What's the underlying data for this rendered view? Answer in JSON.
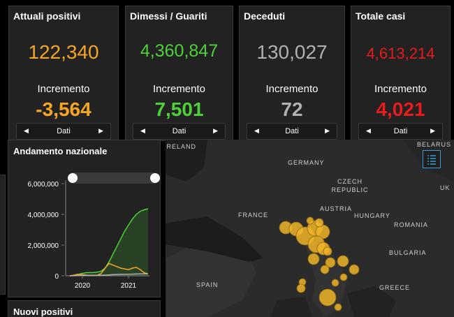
{
  "cards": [
    {
      "title": "Attuali positivi",
      "value": "122,340",
      "inc_label": "Incremento",
      "inc_value": "-3,564",
      "pager_label": "Dati",
      "value_color": "#f5a623",
      "inc_color": "#f5a623"
    },
    {
      "title": "Dimessi / Guariti",
      "value": "4,360,847",
      "inc_label": "Incremento",
      "inc_value": "7,501",
      "pager_label": "Dati",
      "value_color": "#4cd137",
      "inc_color": "#4cd137"
    },
    {
      "title": "Deceduti",
      "value": "130,027",
      "inc_label": "Incremento",
      "inc_value": "72",
      "pager_label": "Dati",
      "value_color": "#b0b0b0",
      "inc_color": "#b0b0b0"
    },
    {
      "title": "Totale casi",
      "value": "4,613,214",
      "inc_label": "Incremento",
      "inc_value": "4,021",
      "pager_label": "Dati",
      "value_color": "#e81b1b",
      "inc_color": "#e81b1b"
    }
  ],
  "chart_panel": {
    "title": "Andamento nazionale"
  },
  "bottom_panel": {
    "title": "Nuovi positivi"
  },
  "chart_data": {
    "type": "line",
    "x_ticks": [
      "2020",
      "2021"
    ],
    "y_ticks": [
      "6,000,000",
      "4,000,000",
      "2,000,000",
      "0"
    ],
    "ylim": [
      0,
      6000000
    ],
    "x": [
      0,
      1,
      2,
      3,
      4,
      5,
      6,
      7,
      8,
      9,
      10,
      11,
      12,
      13,
      14,
      15,
      16,
      17,
      18,
      19,
      20
    ],
    "series": [
      {
        "color": "#4cd137",
        "values": [
          0,
          20000,
          80000,
          150000,
          200000,
          210000,
          220000,
          240000,
          300000,
          500000,
          900000,
          1400000,
          1900000,
          2400000,
          2900000,
          3300000,
          3700000,
          4000000,
          4200000,
          4300000,
          4360847
        ]
      },
      {
        "color": "#f5a623",
        "values": [
          0,
          40000,
          100000,
          80000,
          50000,
          20000,
          15000,
          30000,
          150000,
          500000,
          800000,
          700000,
          600000,
          500000,
          450000,
          400000,
          500000,
          550000,
          400000,
          200000,
          122340
        ]
      },
      {
        "color": "#b0b0b0",
        "values": [
          0,
          5000,
          20000,
          30000,
          34000,
          35000,
          35000,
          36000,
          38000,
          45000,
          60000,
          75000,
          85000,
          95000,
          100000,
          105000,
          110000,
          118000,
          125000,
          128000,
          130027
        ]
      }
    ]
  },
  "map": {
    "labels": [
      "IRELAND",
      "GERMANY",
      "CZECH REPUBLIC",
      "AUSTRIA",
      "HUNGARY",
      "FRANCE",
      "ROMANIA",
      "BULGARIA",
      "SPAIN",
      "GREECE",
      "BELARUS",
      "UK"
    ],
    "bubble_color": "#f0b429",
    "legend_icon": "list-icon"
  }
}
